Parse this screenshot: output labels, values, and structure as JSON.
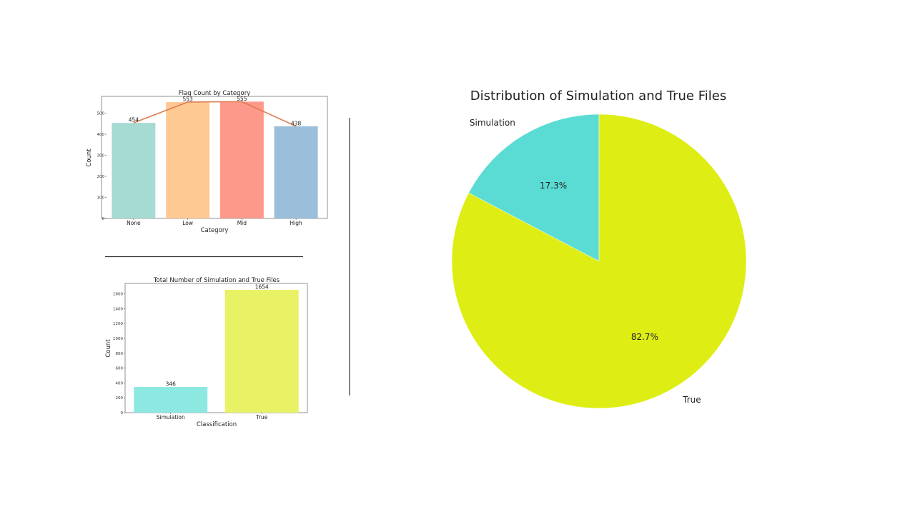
{
  "chart_data": [
    {
      "type": "bar",
      "title": "Flag Count by Category",
      "xlabel": "Category",
      "ylabel": "Count",
      "categories": [
        "None",
        "Low",
        "Mid",
        "High"
      ],
      "values": [
        454,
        553,
        555,
        438
      ],
      "bar_colors": [
        "#a6dbd4",
        "#ffc994",
        "#fd998a",
        "#9bbfda"
      ],
      "line_overlay": {
        "values": [
          454,
          553,
          555,
          438
        ],
        "color": "#e07a4f"
      },
      "yticks": [
        0,
        100,
        200,
        300,
        400,
        500
      ],
      "ylim": [
        0,
        580
      ],
      "grid": false
    },
    {
      "type": "bar",
      "title": "Total Number of Simulation and True Files",
      "xlabel": "Classification",
      "ylabel": "Count",
      "categories": [
        "Simulation",
        "True"
      ],
      "values": [
        346,
        1654
      ],
      "bar_colors": [
        "#8ee8e2",
        "#e9f165"
      ],
      "yticks": [
        0,
        200,
        400,
        600,
        800,
        1000,
        1200,
        1400,
        1600
      ],
      "ylim": [
        0,
        1740
      ],
      "grid": false
    },
    {
      "type": "pie",
      "title": "Distribution of Simulation and True Files",
      "labels": [
        "Simulation",
        "True"
      ],
      "values": [
        17.3,
        82.7
      ],
      "percent_labels": [
        "17.3%",
        "82.7%"
      ],
      "colors": [
        "#5adcd4",
        "#deed13"
      ],
      "start_angle": 90
    }
  ]
}
